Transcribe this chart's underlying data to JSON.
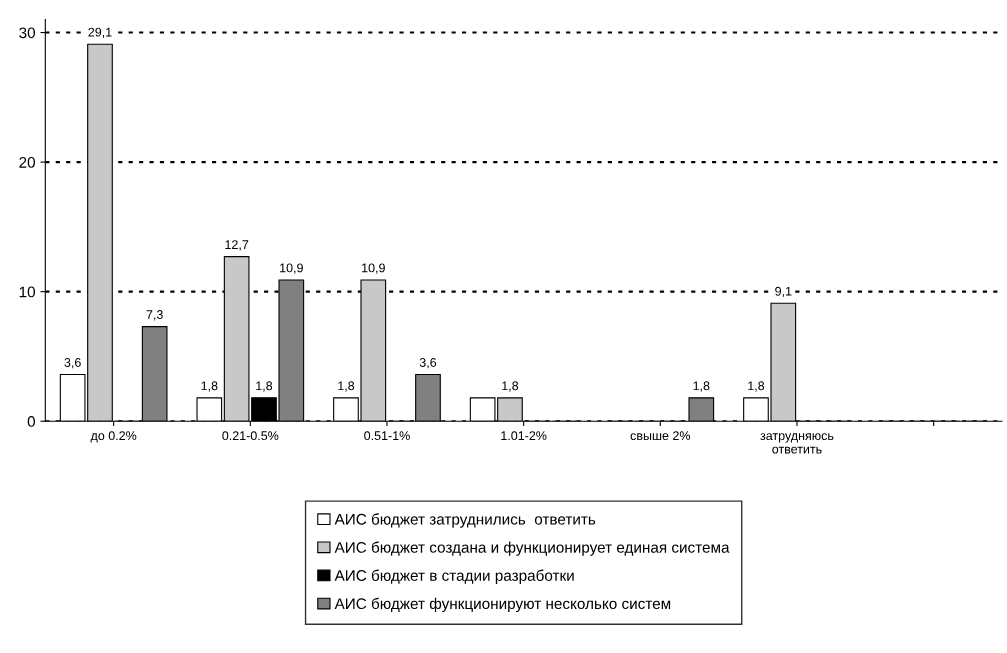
{
  "chart_data": {
    "type": "bar",
    "categories": [
      "до 0.2%",
      "0.21-0.5%",
      "0.51-1%",
      "1.01-2%",
      "свыше 2%",
      "затрудняюсь\nответить",
      null
    ],
    "series": [
      {
        "name": "АИС бюджет затруднились  ответить",
        "color": "#ffffff",
        "values": [
          3.6,
          1.8,
          1.8,
          1.8,
          0,
          1.8,
          0
        ],
        "value_labels": [
          "3,6",
          "1,8",
          "1,8",
          null,
          null,
          "1,8",
          null
        ]
      },
      {
        "name": "АИС бюджет создана и функционирует единая система",
        "color": "#c8c8c8",
        "values": [
          29.1,
          12.7,
          10.9,
          1.8,
          0,
          9.1,
          0
        ],
        "value_labels": [
          "29,1",
          "12,7",
          "10,9",
          "1,8",
          null,
          "9,1",
          null
        ]
      },
      {
        "name": "АИС бюджет в стадии разработки",
        "color": "#000000",
        "values": [
          0,
          1.8,
          0,
          0,
          0,
          0,
          0
        ],
        "value_labels": [
          null,
          "1,8",
          null,
          null,
          null,
          null,
          null
        ]
      },
      {
        "name": "АИС бюджет функционируют несколько систем",
        "color": "#808080",
        "values": [
          7.3,
          10.9,
          3.6,
          0,
          1.8,
          0,
          0
        ],
        "value_labels": [
          "7,3",
          "10,9",
          "3,6",
          null,
          "1,8",
          null,
          null
        ]
      }
    ],
    "ylim": [
      0,
      31
    ],
    "yticks": [
      0,
      10,
      20,
      30
    ],
    "grid": "y",
    "legend": "bottom"
  }
}
